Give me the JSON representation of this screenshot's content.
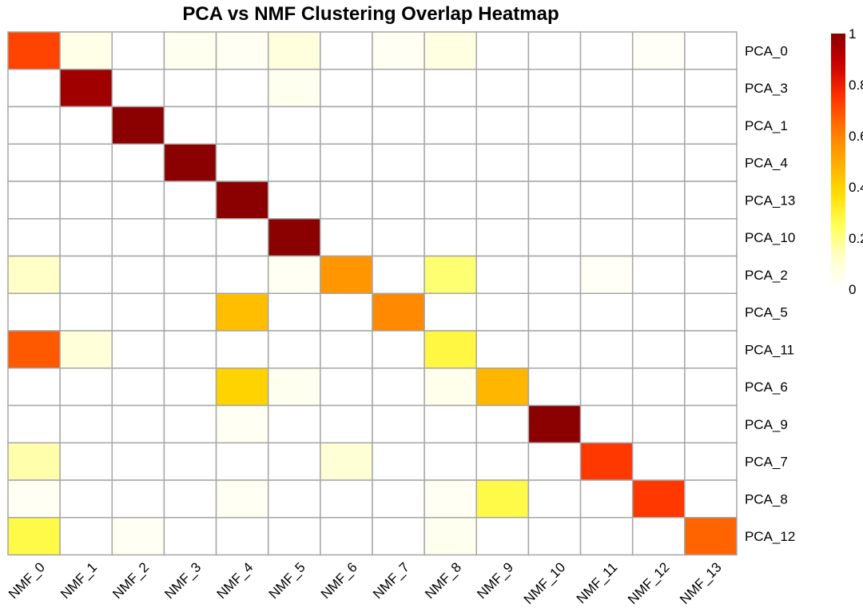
{
  "chart_data": {
    "type": "heatmap",
    "title": "PCA vs NMF Clustering Overlap Heatmap",
    "xlabel": "",
    "ylabel": "",
    "columns": [
      "NMF_0",
      "NMF_1",
      "NMF_2",
      "NMF_3",
      "NMF_4",
      "NMF_5",
      "NMF_6",
      "NMF_7",
      "NMF_8",
      "NMF_9",
      "NMF_10",
      "NMF_11",
      "NMF_12",
      "NMF_13"
    ],
    "rows": [
      "PCA_0",
      "PCA_3",
      "PCA_1",
      "PCA_4",
      "PCA_13",
      "PCA_10",
      "PCA_2",
      "PCA_5",
      "PCA_11",
      "PCA_6",
      "PCA_9",
      "PCA_7",
      "PCA_8",
      "PCA_12"
    ],
    "values": [
      [
        0.72,
        0.06,
        0.0,
        0.04,
        0.03,
        0.08,
        0.0,
        0.03,
        0.07,
        0.0,
        0.0,
        0.0,
        0.02,
        0.0
      ],
      [
        0.0,
        0.96,
        0.0,
        0.0,
        0.0,
        0.04,
        0.0,
        0.0,
        0.0,
        0.0,
        0.0,
        0.0,
        0.0,
        0.0
      ],
      [
        0.0,
        0.0,
        1.0,
        0.0,
        0.0,
        0.0,
        0.0,
        0.0,
        0.0,
        0.0,
        0.0,
        0.0,
        0.0,
        0.0
      ],
      [
        0.0,
        0.0,
        0.0,
        1.0,
        0.0,
        0.0,
        0.0,
        0.0,
        0.0,
        0.0,
        0.0,
        0.0,
        0.0,
        0.0
      ],
      [
        0.0,
        0.0,
        0.0,
        0.0,
        1.0,
        0.0,
        0.0,
        0.0,
        0.0,
        0.0,
        0.0,
        0.0,
        0.0,
        0.0
      ],
      [
        0.0,
        0.0,
        0.0,
        0.0,
        0.0,
        1.0,
        0.0,
        0.0,
        0.0,
        0.0,
        0.0,
        0.0,
        0.0,
        0.0
      ],
      [
        0.13,
        0.0,
        0.0,
        0.0,
        0.0,
        0.03,
        0.55,
        0.0,
        0.22,
        0.0,
        0.0,
        0.02,
        0.0,
        0.0
      ],
      [
        0.0,
        0.0,
        0.0,
        0.0,
        0.45,
        0.0,
        0.0,
        0.58,
        0.0,
        0.0,
        0.0,
        0.0,
        0.0,
        0.0
      ],
      [
        0.68,
        0.09,
        0.0,
        0.0,
        0.0,
        0.0,
        0.0,
        0.0,
        0.28,
        0.0,
        0.0,
        0.0,
        0.0,
        0.0
      ],
      [
        0.0,
        0.0,
        0.0,
        0.0,
        0.4,
        0.04,
        0.0,
        0.0,
        0.05,
        0.47,
        0.0,
        0.0,
        0.0,
        0.0
      ],
      [
        0.0,
        0.0,
        0.0,
        0.0,
        0.03,
        0.0,
        0.0,
        0.0,
        0.0,
        0.0,
        1.0,
        0.0,
        0.0,
        0.0
      ],
      [
        0.16,
        0.0,
        0.0,
        0.0,
        0.0,
        0.0,
        0.1,
        0.0,
        0.0,
        0.0,
        0.0,
        0.74,
        0.0,
        0.0
      ],
      [
        0.03,
        0.0,
        0.0,
        0.0,
        0.03,
        0.0,
        0.0,
        0.0,
        0.03,
        0.27,
        0.0,
        0.0,
        0.74,
        0.0
      ],
      [
        0.27,
        0.0,
        0.03,
        0.0,
        0.0,
        0.0,
        0.0,
        0.0,
        0.04,
        0.0,
        0.0,
        0.0,
        0.0,
        0.66
      ]
    ],
    "zlim": [
      0,
      1
    ],
    "legend": {
      "position": "right",
      "ticks": [
        "1",
        "0.8",
        "0.6",
        "0.4",
        "0.2",
        "0"
      ],
      "tick_values": [
        1,
        0.8,
        0.6,
        0.4,
        0.2,
        0
      ]
    },
    "colorscale": [
      "#ffffff",
      "#ffffcc",
      "#ffff55",
      "#ffdd00",
      "#ffaa00",
      "#ff7700",
      "#ff3300",
      "#cc0000",
      "#8b0000"
    ],
    "grid_color": "#a6a6a6",
    "grid": true
  }
}
